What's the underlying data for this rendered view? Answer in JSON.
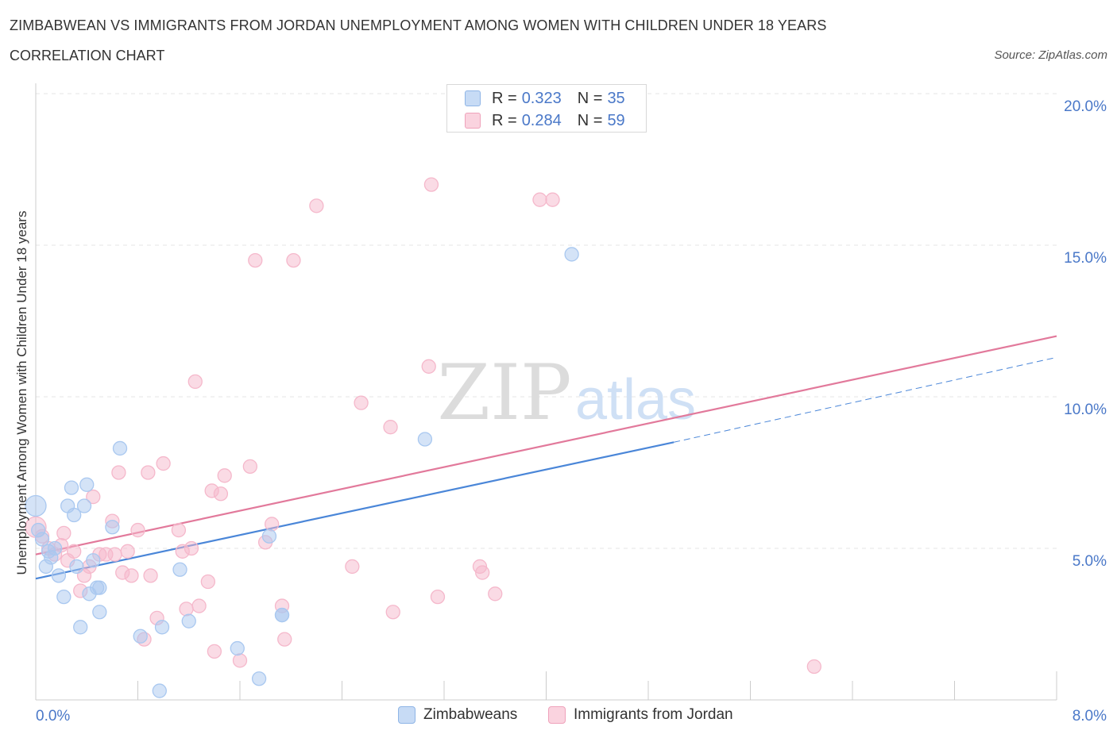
{
  "header": {
    "title": "ZIMBABWEAN VS IMMIGRANTS FROM JORDAN UNEMPLOYMENT AMONG WOMEN WITH CHILDREN UNDER 18 YEARS",
    "subtitle": "CORRELATION CHART",
    "source": "Source: ZipAtlas.com"
  },
  "legend": {
    "rows": [
      {
        "r_label": "R =",
        "r_value": "0.323",
        "n_label": "N =",
        "n_value": "35",
        "color": "#a9c8f0"
      },
      {
        "r_label": "R =",
        "r_value": "0.284",
        "n_label": "N =",
        "n_value": "59",
        "color": "#f5b8cb"
      }
    ],
    "series": [
      {
        "name": "Zimbabweans",
        "color": "#a9c8f0"
      },
      {
        "name": "Immigrants from Jordan",
        "color": "#f5b8cb"
      }
    ]
  },
  "watermark": {
    "zip": "ZIP",
    "atlas": "atlas"
  },
  "chart_data": {
    "type": "scatter",
    "ylabel": "Unemployment Among Women with Children Under 18 years",
    "xlim": [
      0,
      8
    ],
    "ylim": [
      0,
      20
    ],
    "x_tick_labels": [
      "0.0%",
      "8.0%"
    ],
    "y_ticks": [
      5,
      10,
      15,
      20
    ],
    "y_tick_labels": [
      "5.0%",
      "10.0%",
      "15.0%",
      "20.0%"
    ],
    "grid": true,
    "series": [
      {
        "name": "Zimbabweans",
        "color": "#4a86d8",
        "fill": "#a9c8f0",
        "trend": {
          "x": [
            0,
            5.0
          ],
          "y": [
            4.0,
            8.5
          ],
          "dash_to": [
            8.0,
            11.3
          ]
        },
        "points": [
          [
            0.0,
            6.4
          ],
          [
            0.05,
            5.3
          ],
          [
            0.1,
            4.9
          ],
          [
            0.15,
            5.0
          ],
          [
            0.12,
            4.7
          ],
          [
            0.08,
            4.4
          ],
          [
            0.18,
            4.1
          ],
          [
            0.22,
            3.4
          ],
          [
            0.25,
            6.4
          ],
          [
            0.28,
            7.0
          ],
          [
            0.3,
            6.1
          ],
          [
            0.32,
            4.4
          ],
          [
            0.38,
            6.4
          ],
          [
            0.4,
            7.1
          ],
          [
            0.42,
            3.5
          ],
          [
            0.45,
            4.6
          ],
          [
            0.48,
            3.7
          ],
          [
            0.5,
            3.7
          ],
          [
            0.5,
            2.9
          ],
          [
            0.35,
            2.4
          ],
          [
            0.6,
            5.7
          ],
          [
            0.66,
            8.3
          ],
          [
            0.82,
            2.1
          ],
          [
            0.97,
            0.3
          ],
          [
            0.99,
            2.4
          ],
          [
            1.13,
            4.3
          ],
          [
            1.2,
            2.6
          ],
          [
            1.58,
            1.7
          ],
          [
            1.75,
            0.7
          ],
          [
            1.83,
            5.4
          ],
          [
            1.93,
            2.8
          ],
          [
            1.93,
            2.8
          ],
          [
            3.05,
            8.6
          ],
          [
            4.2,
            14.7
          ],
          [
            0.02,
            5.6
          ]
        ]
      },
      {
        "name": "Immigrants from Jordan",
        "color": "#e2799b",
        "fill": "#f5b8cb",
        "trend": {
          "x": [
            0,
            8.0
          ],
          "y": [
            4.8,
            12.0
          ]
        },
        "points": [
          [
            0.0,
            5.7
          ],
          [
            0.05,
            5.4
          ],
          [
            0.1,
            5.0
          ],
          [
            0.15,
            4.8
          ],
          [
            0.2,
            5.1
          ],
          [
            0.22,
            5.5
          ],
          [
            0.25,
            4.6
          ],
          [
            0.3,
            4.9
          ],
          [
            0.35,
            3.6
          ],
          [
            0.38,
            4.1
          ],
          [
            0.42,
            4.4
          ],
          [
            0.45,
            6.7
          ],
          [
            0.5,
            4.8
          ],
          [
            0.55,
            4.8
          ],
          [
            0.6,
            5.9
          ],
          [
            0.62,
            4.8
          ],
          [
            0.65,
            7.5
          ],
          [
            0.68,
            4.2
          ],
          [
            0.72,
            4.9
          ],
          [
            0.75,
            4.1
          ],
          [
            0.8,
            5.6
          ],
          [
            0.85,
            2.0
          ],
          [
            0.88,
            7.5
          ],
          [
            0.9,
            4.1
          ],
          [
            0.95,
            2.7
          ],
          [
            1.0,
            7.8
          ],
          [
            1.12,
            5.6
          ],
          [
            1.15,
            4.9
          ],
          [
            1.18,
            3.0
          ],
          [
            1.22,
            5.0
          ],
          [
            1.25,
            10.5
          ],
          [
            1.28,
            3.1
          ],
          [
            1.35,
            3.9
          ],
          [
            1.38,
            6.9
          ],
          [
            1.4,
            1.6
          ],
          [
            1.45,
            6.8
          ],
          [
            1.48,
            7.4
          ],
          [
            1.6,
            1.3
          ],
          [
            1.68,
            7.7
          ],
          [
            1.72,
            14.5
          ],
          [
            1.8,
            5.2
          ],
          [
            1.85,
            5.8
          ],
          [
            1.95,
            2.0
          ],
          [
            2.02,
            14.5
          ],
          [
            1.93,
            3.1
          ],
          [
            2.2,
            16.3
          ],
          [
            2.48,
            4.4
          ],
          [
            2.55,
            9.8
          ],
          [
            2.78,
            9.0
          ],
          [
            2.8,
            2.9
          ],
          [
            3.08,
            11.0
          ],
          [
            3.1,
            17.0
          ],
          [
            3.15,
            3.4
          ],
          [
            3.48,
            4.4
          ],
          [
            3.5,
            4.2
          ],
          [
            3.6,
            3.5
          ],
          [
            3.95,
            16.5
          ],
          [
            4.05,
            16.5
          ],
          [
            6.1,
            1.1
          ]
        ]
      }
    ]
  }
}
